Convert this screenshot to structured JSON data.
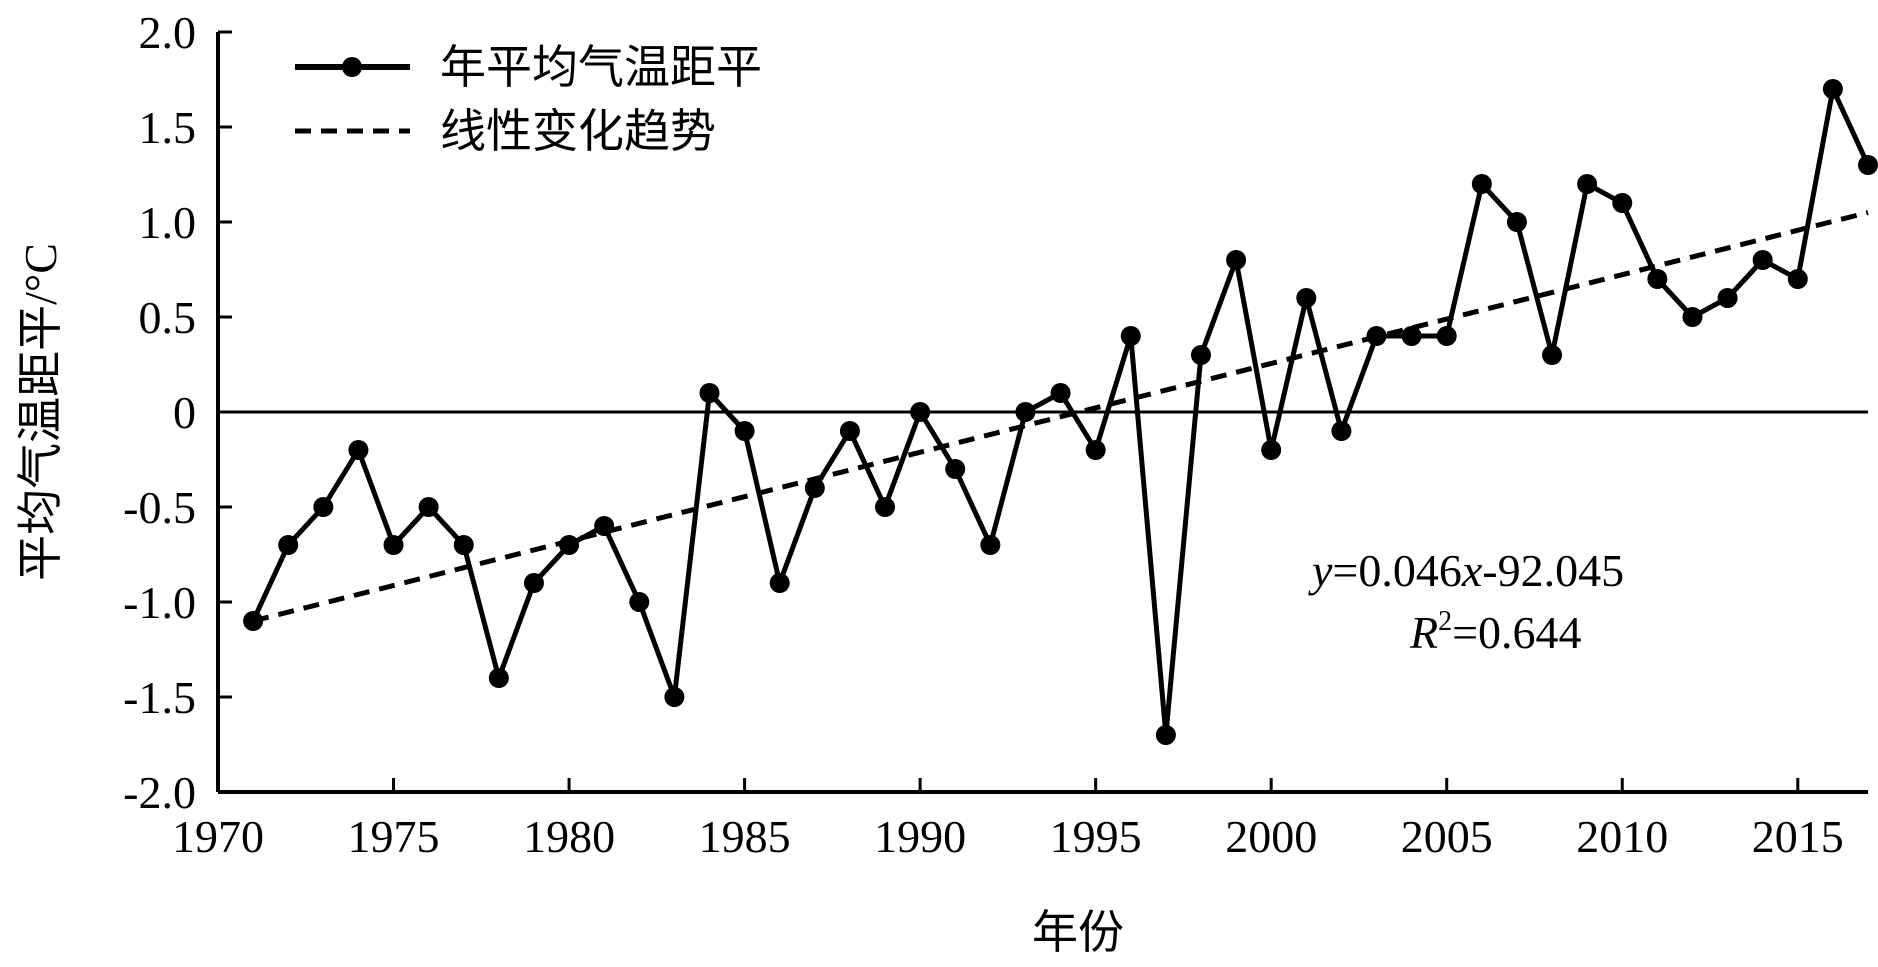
{
  "chart_data": {
    "type": "line",
    "xlabel": "年份",
    "ylabel": "平均气温距平/°C",
    "xlim": [
      1970,
      2017
    ],
    "ylim": [
      -2.0,
      2.0
    ],
    "x_ticks": [
      1970,
      1975,
      1980,
      1985,
      1990,
      1995,
      2000,
      2005,
      2010,
      2015
    ],
    "x_tick_labels": [
      "1970",
      "1975",
      "1980",
      "1985",
      "1990",
      "1995",
      "2000",
      "2005",
      "2010",
      "2015"
    ],
    "y_ticks": [
      2.0,
      1.5,
      1.0,
      0.5,
      0,
      -0.5,
      -1.0,
      -1.5,
      -2.0
    ],
    "y_tick_labels": [
      "2.0",
      "1.5",
      "1.0",
      "0.5",
      "0",
      "-0.5",
      "-1.0",
      "-1.5",
      "-2.0"
    ],
    "zero_line": true,
    "grid": false,
    "legend_position": "top-left",
    "series": [
      {
        "name": "年平均气温距平",
        "style": "solid-line-with-circle-markers",
        "color": "#000000",
        "x": [
          1971,
          1972,
          1973,
          1974,
          1975,
          1976,
          1977,
          1978,
          1979,
          1980,
          1981,
          1982,
          1983,
          1984,
          1985,
          1986,
          1987,
          1988,
          1989,
          1990,
          1991,
          1992,
          1993,
          1994,
          1995,
          1996,
          1997,
          1998,
          1999,
          2000,
          2001,
          2002,
          2003,
          2004,
          2005,
          2006,
          2007,
          2008,
          2009,
          2010,
          2011,
          2012,
          2013,
          2014,
          2015,
          2016,
          2017
        ],
        "y": [
          -1.1,
          -0.7,
          -0.5,
          -0.2,
          -0.7,
          -0.5,
          -0.7,
          -1.4,
          -0.9,
          -0.7,
          -0.6,
          -1.0,
          -1.5,
          0.1,
          -0.1,
          -0.9,
          -0.4,
          -0.1,
          -0.5,
          0.0,
          -0.3,
          -0.7,
          0.0,
          0.1,
          -0.2,
          0.4,
          -1.7,
          0.3,
          0.8,
          -0.2,
          0.6,
          -0.1,
          0.4,
          0.4,
          0.4,
          1.2,
          1.0,
          0.3,
          1.2,
          1.1,
          0.7,
          0.5,
          0.6,
          0.8,
          0.7,
          1.7,
          1.3
        ]
      },
      {
        "name": "线性变化趋势",
        "style": "dashed-line",
        "color": "#000000",
        "x": [
          1971,
          2017
        ],
        "y": [
          -1.1,
          1.05
        ]
      }
    ],
    "annotations": {
      "equation_y": "y",
      "equation_rest1": "=0.046",
      "equation_x": "x",
      "equation_rest2": "-92.045",
      "r2_R": "R",
      "r2_sup": "2",
      "r2_rest": "=0.644"
    }
  }
}
